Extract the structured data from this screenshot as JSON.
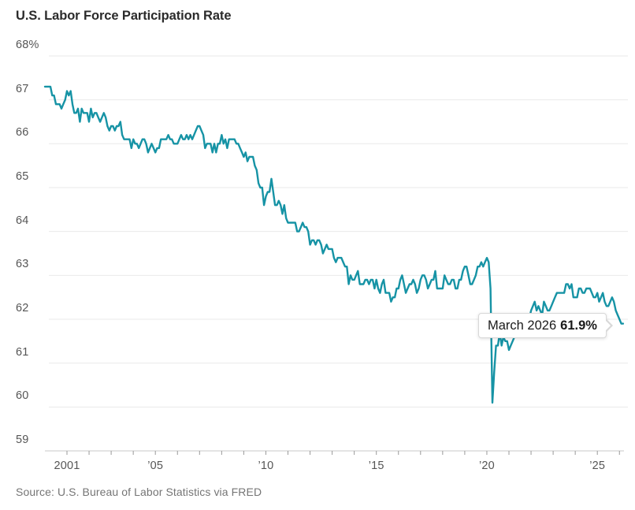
{
  "title": "U.S. Labor Force Participation Rate",
  "source_note": "Source: U.S. Bureau of Labor Statistics via FRED",
  "tooltip": {
    "label": "March 2026",
    "value": "61.9%"
  },
  "colors": {
    "line": "#1693a5",
    "grid": "#e9e9e9",
    "axis_line": "#c9c9c9",
    "tick": "#999999",
    "axis_text": "#555555",
    "title_text": "#2b2b2b",
    "source_text": "#757575",
    "tooltip_border": "#d8d8d8"
  },
  "chart_data": {
    "type": "line",
    "title": "U.S. Labor Force Participation Rate",
    "xlabel": "",
    "ylabel": "",
    "unit": "%",
    "grid": true,
    "legend": false,
    "ylim": [
      59,
      68
    ],
    "xlim": [
      2000,
      2026.4
    ],
    "yticks": [
      {
        "value": 68,
        "label": "68%"
      },
      {
        "value": 67,
        "label": "67"
      },
      {
        "value": 66,
        "label": "66"
      },
      {
        "value": 65,
        "label": "65"
      },
      {
        "value": 64,
        "label": "64"
      },
      {
        "value": 63,
        "label": "63"
      },
      {
        "value": 62,
        "label": "62"
      },
      {
        "value": 61,
        "label": "61"
      },
      {
        "value": 60,
        "label": "60"
      },
      {
        "value": 59,
        "label": "59"
      }
    ],
    "xticks_labeled": [
      {
        "year": 2001,
        "label": "2001"
      },
      {
        "year": 2005,
        "label": "’05"
      },
      {
        "year": 2010,
        "label": "’10"
      },
      {
        "year": 2015,
        "label": "’15"
      },
      {
        "year": 2020,
        "label": "’20"
      },
      {
        "year": 2025,
        "label": "’25"
      }
    ],
    "minor_ticks_every_year_from": 2001,
    "minor_ticks_every_year_to": 2026,
    "x_start_year": 2000,
    "x_step_months": 1,
    "last_point": {
      "label": "March 2026",
      "value": 61.9
    },
    "values": [
      67.3,
      67.3,
      67.3,
      67.3,
      67.1,
      67.1,
      66.9,
      66.9,
      66.9,
      66.8,
      66.9,
      67.0,
      67.2,
      67.1,
      67.2,
      66.9,
      66.7,
      66.7,
      66.8,
      66.5,
      66.8,
      66.7,
      66.7,
      66.7,
      66.5,
      66.8,
      66.6,
      66.7,
      66.7,
      66.6,
      66.5,
      66.6,
      66.7,
      66.6,
      66.4,
      66.3,
      66.4,
      66.4,
      66.3,
      66.4,
      66.4,
      66.5,
      66.2,
      66.1,
      66.1,
      66.1,
      66.1,
      65.9,
      66.1,
      66.0,
      66.0,
      65.9,
      66.0,
      66.1,
      66.1,
      66.0,
      65.8,
      65.9,
      66.0,
      65.9,
      65.8,
      65.9,
      65.9,
      66.1,
      66.1,
      66.1,
      66.1,
      66.2,
      66.1,
      66.1,
      66.0,
      66.0,
      66.0,
      66.1,
      66.2,
      66.1,
      66.1,
      66.2,
      66.1,
      66.2,
      66.1,
      66.2,
      66.3,
      66.4,
      66.4,
      66.3,
      66.2,
      65.9,
      66.0,
      66.0,
      66.0,
      65.8,
      66.0,
      65.8,
      66.0,
      66.0,
      66.2,
      66.0,
      66.1,
      65.9,
      66.1,
      66.1,
      66.1,
      66.1,
      66.0,
      66.0,
      65.9,
      65.8,
      65.7,
      65.8,
      65.6,
      65.7,
      65.7,
      65.7,
      65.5,
      65.4,
      65.1,
      65.0,
      65.0,
      64.6,
      64.8,
      64.9,
      64.9,
      65.2,
      64.9,
      64.6,
      64.6,
      64.7,
      64.6,
      64.4,
      64.6,
      64.3,
      64.2,
      64.2,
      64.2,
      64.2,
      64.2,
      64.0,
      64.0,
      64.1,
      64.2,
      64.1,
      64.1,
      64.0,
      63.7,
      63.8,
      63.8,
      63.7,
      63.8,
      63.8,
      63.7,
      63.5,
      63.6,
      63.7,
      63.6,
      63.6,
      63.6,
      63.4,
      63.3,
      63.4,
      63.4,
      63.4,
      63.3,
      63.2,
      63.2,
      62.8,
      63.0,
      62.9,
      62.9,
      63.0,
      63.1,
      62.8,
      62.8,
      62.8,
      62.9,
      62.9,
      62.8,
      62.9,
      62.9,
      62.7,
      62.9,
      62.7,
      62.6,
      62.8,
      62.9,
      62.6,
      62.6,
      62.6,
      62.4,
      62.5,
      62.5,
      62.7,
      62.7,
      62.9,
      63.0,
      62.8,
      62.6,
      62.7,
      62.8,
      62.8,
      62.9,
      62.8,
      62.6,
      62.7,
      62.9,
      63.0,
      63.0,
      62.9,
      62.7,
      62.8,
      62.9,
      62.9,
      63.1,
      62.7,
      62.7,
      62.7,
      62.7,
      63.0,
      62.9,
      62.8,
      62.8,
      62.9,
      62.9,
      62.7,
      62.7,
      62.9,
      62.9,
      63.1,
      63.2,
      63.2,
      63.0,
      62.8,
      62.8,
      62.9,
      63.0,
      63.2,
      63.2,
      63.3,
      63.2,
      63.3,
      63.4,
      63.3,
      62.7,
      60.1,
      60.8,
      61.4,
      61.4,
      61.7,
      61.4,
      61.6,
      61.5,
      61.5,
      61.3,
      61.4,
      61.5,
      61.6,
      61.6,
      61.6,
      61.7,
      61.7,
      61.7,
      61.8,
      61.9,
      62.0,
      62.2,
      62.3,
      62.4,
      62.2,
      62.3,
      62.2,
      62.1,
      62.4,
      62.3,
      62.2,
      62.2,
      62.3,
      62.4,
      62.5,
      62.6,
      62.6,
      62.6,
      62.6,
      62.6,
      62.8,
      62.8,
      62.7,
      62.8,
      62.5,
      62.5,
      62.5,
      62.7,
      62.7,
      62.6,
      62.6,
      62.7,
      62.7,
      62.7,
      62.6,
      62.5,
      62.5,
      62.6,
      62.4,
      62.5,
      62.6,
      62.4,
      62.3,
      62.3,
      62.4,
      62.5,
      62.4,
      62.2,
      62.1,
      62.0,
      61.9,
      61.9
    ]
  }
}
